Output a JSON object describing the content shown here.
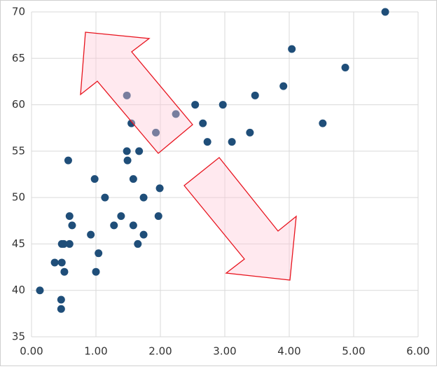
{
  "chart_data": {
    "type": "scatter",
    "color": "#1f4e79",
    "grid": true,
    "x": [
      0.13,
      0.36,
      0.46,
      0.46,
      0.47,
      0.47,
      0.5,
      0.51,
      0.57,
      0.59,
      0.59,
      0.63,
      0.92,
      0.98,
      1.0,
      1.04,
      1.14,
      1.28,
      1.39,
      1.48,
      1.48,
      1.49,
      1.55,
      1.58,
      1.58,
      1.65,
      1.67,
      1.74,
      1.74,
      1.93,
      1.97,
      1.99,
      2.24,
      2.54,
      2.66,
      2.73,
      2.97,
      3.11,
      3.39,
      3.47,
      3.91,
      4.04,
      4.52,
      4.87,
      5.49
    ],
    "values": [
      40,
      43,
      39,
      38,
      43,
      45,
      45,
      42,
      54,
      48,
      45,
      47,
      46,
      52,
      42,
      44,
      50,
      47,
      48,
      61,
      55,
      54,
      58,
      52,
      47,
      45,
      55,
      50,
      46,
      57,
      48,
      51,
      59,
      60,
      58,
      56,
      60,
      56,
      57,
      61,
      62,
      66,
      58,
      64,
      70
    ],
    "xlim": [
      0,
      6
    ],
    "ylim": [
      35,
      70
    ],
    "xticks": [
      {
        "value": 0,
        "label": "0.00"
      },
      {
        "value": 1,
        "label": "1.00"
      },
      {
        "value": 2,
        "label": "2.00"
      },
      {
        "value": 3,
        "label": "3.00"
      },
      {
        "value": 4,
        "label": "4.00"
      },
      {
        "value": 5,
        "label": "5.00"
      },
      {
        "value": 6,
        "label": "6.00"
      }
    ],
    "yticks": [
      35,
      40,
      45,
      50,
      55,
      60,
      65,
      70
    ]
  }
}
